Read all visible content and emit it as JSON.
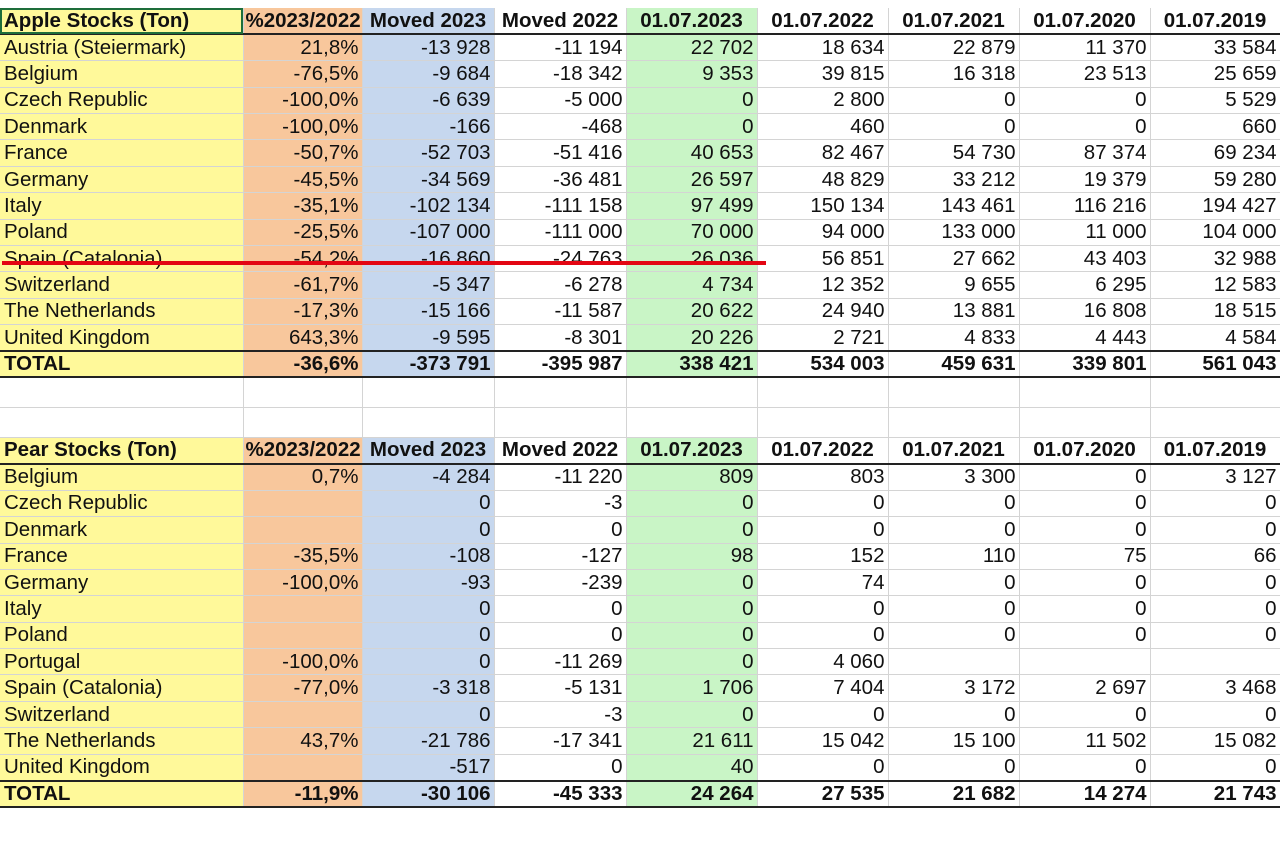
{
  "colors": {
    "label_column": "#fff99a",
    "percent_column": "#f8c79c",
    "moved_2023_column": "#c6d7ee",
    "stock_2023_column": "#c9f5c6",
    "highlight_line": "#e30613"
  },
  "apple": {
    "title": "Apple Stocks (Ton)",
    "headers": [
      "%2023/2022",
      "Moved 2023",
      "Moved 2022",
      "01.07.2023",
      "01.07.2022",
      "01.07.2021",
      "01.07.2020",
      "01.07.2019"
    ],
    "rows": [
      [
        "Austria (Steiermark)",
        "21,8%",
        "-13 928",
        "-11 194",
        "22 702",
        "18 634",
        "22 879",
        "11 370",
        "33 584"
      ],
      [
        "Belgium",
        "-76,5%",
        "-9 684",
        "-18 342",
        "9 353",
        "39 815",
        "16 318",
        "23 513",
        "25 659"
      ],
      [
        "Czech Republic",
        "-100,0%",
        "-6 639",
        "-5 000",
        "0",
        "2 800",
        "0",
        "0",
        "5 529"
      ],
      [
        "Denmark",
        "-100,0%",
        "-166",
        "-468",
        "0",
        "460",
        "0",
        "0",
        "660"
      ],
      [
        "France",
        "-50,7%",
        "-52 703",
        "-51 416",
        "40 653",
        "82 467",
        "54 730",
        "87 374",
        "69 234"
      ],
      [
        "Germany",
        "-45,5%",
        "-34 569",
        "-36 481",
        "26 597",
        "48 829",
        "33 212",
        "19 379",
        "59 280"
      ],
      [
        "Italy",
        "-35,1%",
        "-102 134",
        "-111 158",
        "97 499",
        "150 134",
        "143 461",
        "116 216",
        "194 427"
      ],
      [
        "Poland",
        "-25,5%",
        "-107 000",
        "-111 000",
        "70 000",
        "94 000",
        "133 000",
        "11 000",
        "104 000"
      ],
      [
        "Spain (Catalonia)",
        "-54,2%",
        "-16 860",
        "-24 763",
        "26 036",
        "56 851",
        "27 662",
        "43 403",
        "32 988"
      ],
      [
        "Switzerland",
        "-61,7%",
        "-5 347",
        "-6 278",
        "4 734",
        "12 352",
        "9 655",
        "6 295",
        "12 583"
      ],
      [
        "The Netherlands",
        "-17,3%",
        "-15 166",
        "-11 587",
        "20 622",
        "24 940",
        "13 881",
        "16 808",
        "18 515"
      ],
      [
        "United Kingdom",
        "643,3%",
        "-9 595",
        "-8 301",
        "20 226",
        "2 721",
        "4 833",
        "4 443",
        "4 584"
      ]
    ],
    "total": [
      "TOTAL",
      "-36,6%",
      "-373 791",
      "-395 987",
      "338 421",
      "534 003",
      "459 631",
      "339 801",
      "561 043"
    ]
  },
  "pear": {
    "title": "Pear Stocks (Ton)",
    "headers": [
      "%2023/2022",
      "Moved 2023",
      "Moved 2022",
      "01.07.2023",
      "01.07.2022",
      "01.07.2021",
      "01.07.2020",
      "01.07.2019"
    ],
    "rows": [
      [
        "Belgium",
        "0,7%",
        "-4 284",
        "-11 220",
        "809",
        "803",
        "3 300",
        "0",
        "3 127"
      ],
      [
        "Czech Republic",
        "",
        "0",
        "-3",
        "0",
        "0",
        "0",
        "0",
        "0"
      ],
      [
        "Denmark",
        "",
        "0",
        "0",
        "0",
        "0",
        "0",
        "0",
        "0"
      ],
      [
        "France",
        "-35,5%",
        "-108",
        "-127",
        "98",
        "152",
        "110",
        "75",
        "66"
      ],
      [
        "Germany",
        "-100,0%",
        "-93",
        "-239",
        "0",
        "74",
        "0",
        "0",
        "0"
      ],
      [
        "Italy",
        "",
        "0",
        "0",
        "0",
        "0",
        "0",
        "0",
        "0"
      ],
      [
        "Poland",
        "",
        "0",
        "0",
        "0",
        "0",
        "0",
        "0",
        "0"
      ],
      [
        "Portugal",
        "-100,0%",
        "0",
        "-11 269",
        "0",
        "4 060",
        "",
        "",
        ""
      ],
      [
        "Spain (Catalonia)",
        "-77,0%",
        "-3 318",
        "-5 131",
        "1 706",
        "7 404",
        "3 172",
        "2 697",
        "3 468"
      ],
      [
        "Switzerland",
        "",
        "0",
        "-3",
        "0",
        "0",
        "0",
        "0",
        "0"
      ],
      [
        "The Netherlands",
        "43,7%",
        "-21 786",
        "-17 341",
        "21 611",
        "15 042",
        "15 100",
        "11 502",
        "15 082"
      ],
      [
        "United Kingdom",
        "",
        "-517",
        "0",
        "40",
        "0",
        "0",
        "0",
        "0"
      ]
    ],
    "total": [
      "TOTAL",
      "-11,9%",
      "-30 106",
      "-45 333",
      "24 264",
      "27 535",
      "21 682",
      "14 274",
      "21 743"
    ]
  }
}
